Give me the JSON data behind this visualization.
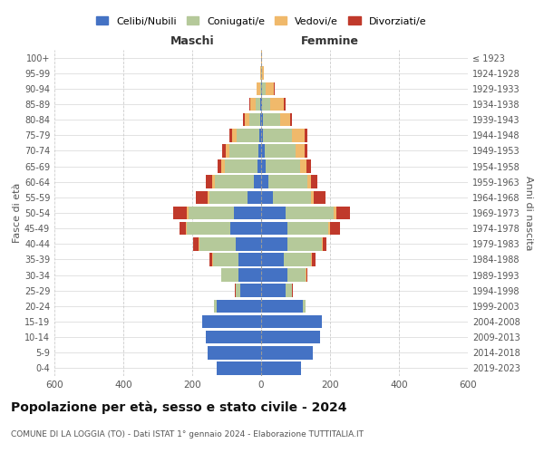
{
  "age_groups": [
    "0-4",
    "5-9",
    "10-14",
    "15-19",
    "20-24",
    "25-29",
    "30-34",
    "35-39",
    "40-44",
    "45-49",
    "50-54",
    "55-59",
    "60-64",
    "65-69",
    "70-74",
    "75-79",
    "80-84",
    "85-89",
    "90-94",
    "95-99",
    "100+"
  ],
  "birth_years": [
    "2019-2023",
    "2014-2018",
    "2009-2013",
    "2004-2008",
    "1999-2003",
    "1994-1998",
    "1989-1993",
    "1984-1988",
    "1979-1983",
    "1974-1978",
    "1969-1973",
    "1964-1968",
    "1959-1963",
    "1954-1958",
    "1949-1953",
    "1944-1948",
    "1939-1943",
    "1934-1938",
    "1929-1933",
    "1924-1928",
    "≤ 1923"
  ],
  "colors": {
    "celibi": "#4472c4",
    "coniugati": "#b5c99a",
    "vedovi": "#f0b96b",
    "divorziati": "#c0392b"
  },
  "maschi": {
    "celibi": [
      130,
      155,
      160,
      170,
      130,
      60,
      65,
      65,
      75,
      90,
      80,
      40,
      20,
      10,
      8,
      5,
      3,
      2,
      0,
      0,
      0
    ],
    "coniugati": [
      0,
      0,
      0,
      2,
      8,
      15,
      50,
      75,
      105,
      125,
      130,
      110,
      115,
      95,
      85,
      65,
      30,
      15,
      3,
      1,
      0
    ],
    "vedovi": [
      0,
      0,
      0,
      0,
      0,
      0,
      0,
      1,
      2,
      3,
      5,
      5,
      8,
      10,
      10,
      15,
      15,
      15,
      10,
      2,
      0
    ],
    "divorziati": [
      0,
      0,
      0,
      0,
      0,
      2,
      2,
      10,
      15,
      20,
      40,
      35,
      18,
      12,
      10,
      8,
      5,
      2,
      0,
      0,
      0
    ]
  },
  "femmine": {
    "celibi": [
      115,
      150,
      170,
      175,
      120,
      70,
      75,
      65,
      75,
      75,
      70,
      35,
      20,
      12,
      10,
      5,
      5,
      2,
      2,
      0,
      0
    ],
    "coniugati": [
      0,
      0,
      0,
      2,
      10,
      20,
      55,
      80,
      100,
      120,
      140,
      110,
      115,
      100,
      90,
      85,
      50,
      25,
      10,
      3,
      1
    ],
    "vedovi": [
      0,
      0,
      0,
      0,
      0,
      0,
      1,
      2,
      3,
      4,
      8,
      8,
      10,
      20,
      25,
      35,
      30,
      40,
      25,
      5,
      2
    ],
    "divorziati": [
      0,
      0,
      0,
      0,
      0,
      2,
      3,
      10,
      12,
      30,
      40,
      35,
      18,
      12,
      10,
      8,
      5,
      5,
      2,
      0,
      0
    ]
  },
  "xlim": [
    -600,
    600
  ],
  "xticks": [
    -600,
    -400,
    -200,
    0,
    200,
    400,
    600
  ],
  "title": "Popolazione per età, sesso e stato civile - 2024",
  "subtitle": "COMUNE DI LA LOGGIA (TO) - Dati ISTAT 1° gennaio 2024 - Elaborazione TUTTITALIA.IT",
  "xlabel_left": "Maschi",
  "xlabel_right": "Femmine",
  "ylabel": "Fasce di età",
  "ylabel_right": "Anni di nascita",
  "legend_labels": [
    "Celibi/Nubili",
    "Coniugati/e",
    "Vedovi/e",
    "Divorziati/e"
  ]
}
